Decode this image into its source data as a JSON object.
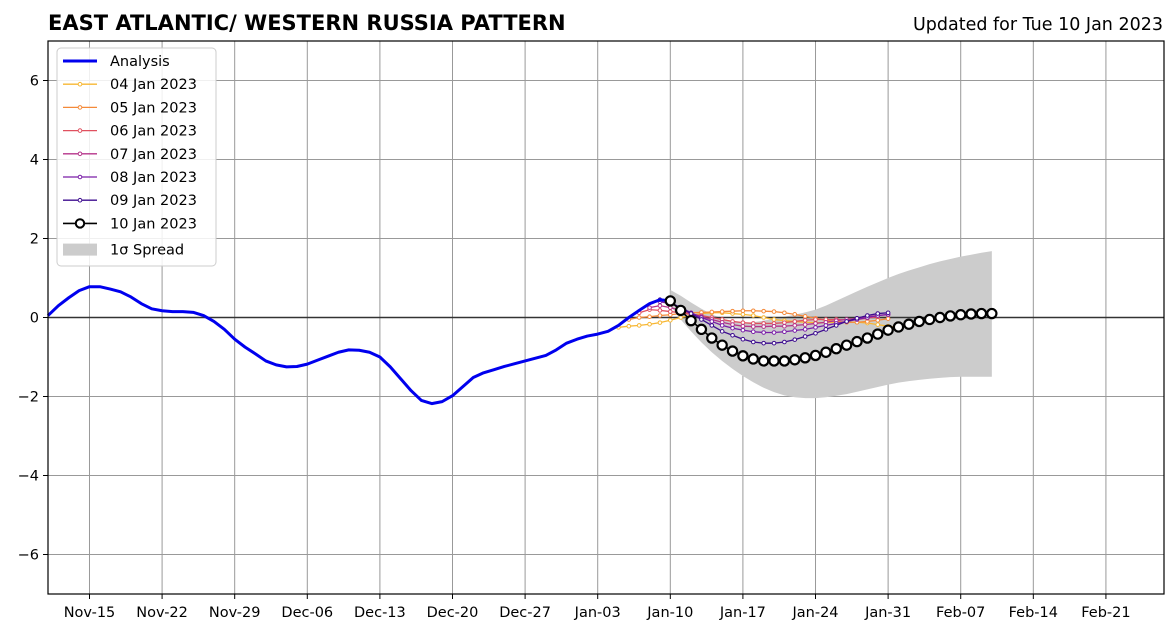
{
  "chart_data": {
    "type": "line",
    "title": "EAST ATLANTIC/ WESTERN RUSSIA PATTERN",
    "subtitle": "Updated for Tue 10 Jan 2023",
    "xlabel": "",
    "ylabel": "",
    "x_start": "2022-11-09",
    "xlim_days": [
      0,
      107.6
    ],
    "ylim": [
      -7,
      7
    ],
    "yticks": [
      -6,
      -4,
      -2,
      0,
      2,
      4,
      6
    ],
    "ytick_labels": [
      "−6",
      "−4",
      "−2",
      "0",
      "2",
      "4",
      "6"
    ],
    "xticks": [
      {
        "day": 4,
        "label": "Nov-15"
      },
      {
        "day": 11,
        "label": "Nov-22"
      },
      {
        "day": 18,
        "label": "Nov-29"
      },
      {
        "day": 25,
        "label": "Dec-06"
      },
      {
        "day": 32,
        "label": "Dec-13"
      },
      {
        "day": 39,
        "label": "Dec-20"
      },
      {
        "day": 46,
        "label": "Dec-27"
      },
      {
        "day": 53,
        "label": "Jan-03"
      },
      {
        "day": 60,
        "label": "Jan-10"
      },
      {
        "day": 67,
        "label": "Jan-17"
      },
      {
        "day": 74,
        "label": "Jan-24"
      },
      {
        "day": 81,
        "label": "Jan-31"
      },
      {
        "day": 88,
        "label": "Feb-07"
      },
      {
        "day": 95,
        "label": "Feb-14"
      },
      {
        "day": 102,
        "label": "Feb-21"
      }
    ],
    "grid": true,
    "legend_position": "top-left",
    "analysis": {
      "name": "Analysis",
      "color": "#0000ee",
      "start_day": 0,
      "values": [
        0.05,
        0.3,
        0.5,
        0.68,
        0.78,
        0.78,
        0.72,
        0.65,
        0.52,
        0.35,
        0.22,
        0.17,
        0.15,
        0.15,
        0.13,
        0.05,
        -0.1,
        -0.3,
        -0.55,
        -0.75,
        -0.92,
        -1.1,
        -1.2,
        -1.25,
        -1.24,
        -1.18,
        -1.08,
        -0.98,
        -0.88,
        -0.82,
        -0.83,
        -0.88,
        -1.0,
        -1.25,
        -1.55,
        -1.85,
        -2.1,
        -2.18,
        -2.13,
        -1.98,
        -1.75,
        -1.52,
        -1.4,
        -1.32,
        -1.24,
        -1.17,
        -1.1,
        -1.03,
        -0.96,
        -0.82,
        -0.65,
        -0.55,
        -0.47,
        -0.42,
        -0.35,
        -0.2,
        0.0,
        0.18,
        0.35,
        0.45,
        0.42
      ]
    },
    "forecasts": [
      {
        "name": "04 Jan 2023",
        "color": "#f7b733",
        "start_day": 55,
        "values": [
          -0.25,
          -0.22,
          -0.2,
          -0.17,
          -0.13,
          -0.07,
          0.0,
          0.05,
          0.1,
          0.12,
          0.12,
          0.1,
          0.08,
          0.05,
          0.0,
          -0.05,
          -0.08,
          -0.1,
          -0.12,
          -0.13,
          -0.13,
          -0.12,
          -0.12,
          -0.12,
          -0.14,
          -0.18,
          -0.22,
          -0.25,
          -0.22,
          -0.15,
          -0.05
        ]
      },
      {
        "name": "05 Jan 2023",
        "color": "#f48a3a",
        "start_day": 56,
        "values": [
          -0.05,
          0.0,
          0.02,
          0.05,
          0.07,
          0.1,
          0.12,
          0.13,
          0.14,
          0.15,
          0.16,
          0.17,
          0.17,
          0.16,
          0.15,
          0.12,
          0.08,
          0.03,
          -0.02,
          -0.07,
          -0.1,
          -0.12,
          -0.12,
          -0.1,
          -0.07,
          -0.03
        ]
      },
      {
        "name": "06 Jan 2023",
        "color": "#e0505f",
        "start_day": 57,
        "values": [
          0.12,
          0.2,
          0.18,
          0.15,
          0.12,
          0.08,
          0.05,
          0.0,
          -0.05,
          -0.1,
          -0.13,
          -0.15,
          -0.15,
          -0.15,
          -0.13,
          -0.1,
          -0.07,
          -0.05,
          -0.05,
          -0.05,
          -0.06,
          -0.05,
          -0.02,
          0.02
        ]
      },
      {
        "name": "07 Jan 2023",
        "color": "#b5338a",
        "start_day": 58,
        "values": [
          0.25,
          0.3,
          0.25,
          0.18,
          0.1,
          0.02,
          -0.05,
          -0.12,
          -0.18,
          -0.22,
          -0.23,
          -0.23,
          -0.22,
          -0.22,
          -0.2,
          -0.18,
          -0.15,
          -0.12,
          -0.08,
          -0.05,
          -0.02,
          0.02,
          0.05,
          0.07
        ]
      },
      {
        "name": "08 Jan 2023",
        "color": "#7a1ea8",
        "start_day": 59,
        "values": [
          0.4,
          0.35,
          0.25,
          0.12,
          0.0,
          -0.1,
          -0.2,
          -0.27,
          -0.32,
          -0.36,
          -0.38,
          -0.38,
          -0.36,
          -0.33,
          -0.3,
          -0.25,
          -0.2,
          -0.15,
          -0.1,
          -0.05,
          0.0,
          0.05,
          0.08
        ]
      },
      {
        "name": "09 Jan 2023",
        "color": "#3d0c8f",
        "start_day": 59,
        "values": [
          0.45,
          0.38,
          0.25,
          0.1,
          -0.05,
          -0.2,
          -0.35,
          -0.45,
          -0.55,
          -0.62,
          -0.65,
          -0.65,
          -0.62,
          -0.56,
          -0.48,
          -0.4,
          -0.3,
          -0.2,
          -0.1,
          -0.02,
          0.05,
          0.1,
          0.12
        ]
      },
      {
        "name": "10 Jan 2023",
        "color": "#000000",
        "start_day": 60,
        "values": [
          0.42,
          0.18,
          -0.08,
          -0.3,
          -0.52,
          -0.7,
          -0.85,
          -0.97,
          -1.05,
          -1.1,
          -1.1,
          -1.1,
          -1.07,
          -1.02,
          -0.96,
          -0.88,
          -0.79,
          -0.7,
          -0.61,
          -0.52,
          -0.42,
          -0.32,
          -0.24,
          -0.17,
          -0.1,
          -0.05,
          0.0,
          0.04,
          0.07,
          0.09,
          0.1,
          0.1
        ]
      }
    ],
    "spread": {
      "name": "1σ Spread",
      "color": "#cccccc",
      "days": [
        60,
        61,
        62,
        63,
        64,
        65,
        66,
        67,
        68,
        69,
        70,
        71,
        72,
        73,
        74,
        75,
        76,
        77,
        78,
        79,
        80,
        81,
        82,
        83,
        84,
        85,
        86,
        87,
        88,
        89,
        90,
        91
      ],
      "upper": [
        0.7,
        0.55,
        0.38,
        0.22,
        0.08,
        -0.03,
        -0.1,
        -0.13,
        -0.12,
        -0.08,
        -0.03,
        0.02,
        0.07,
        0.13,
        0.2,
        0.3,
        0.42,
        0.54,
        0.66,
        0.78,
        0.89,
        1.0,
        1.1,
        1.19,
        1.27,
        1.35,
        1.42,
        1.48,
        1.54,
        1.59,
        1.64,
        1.68
      ],
      "lower": [
        0.3,
        -0.05,
        -0.35,
        -0.63,
        -0.88,
        -1.1,
        -1.3,
        -1.48,
        -1.64,
        -1.78,
        -1.89,
        -1.97,
        -2.02,
        -2.04,
        -2.04,
        -2.02,
        -1.98,
        -1.94,
        -1.88,
        -1.82,
        -1.76,
        -1.7,
        -1.65,
        -1.61,
        -1.58,
        -1.55,
        -1.53,
        -1.51,
        -1.5,
        -1.5,
        -1.5,
        -1.5
      ]
    }
  }
}
